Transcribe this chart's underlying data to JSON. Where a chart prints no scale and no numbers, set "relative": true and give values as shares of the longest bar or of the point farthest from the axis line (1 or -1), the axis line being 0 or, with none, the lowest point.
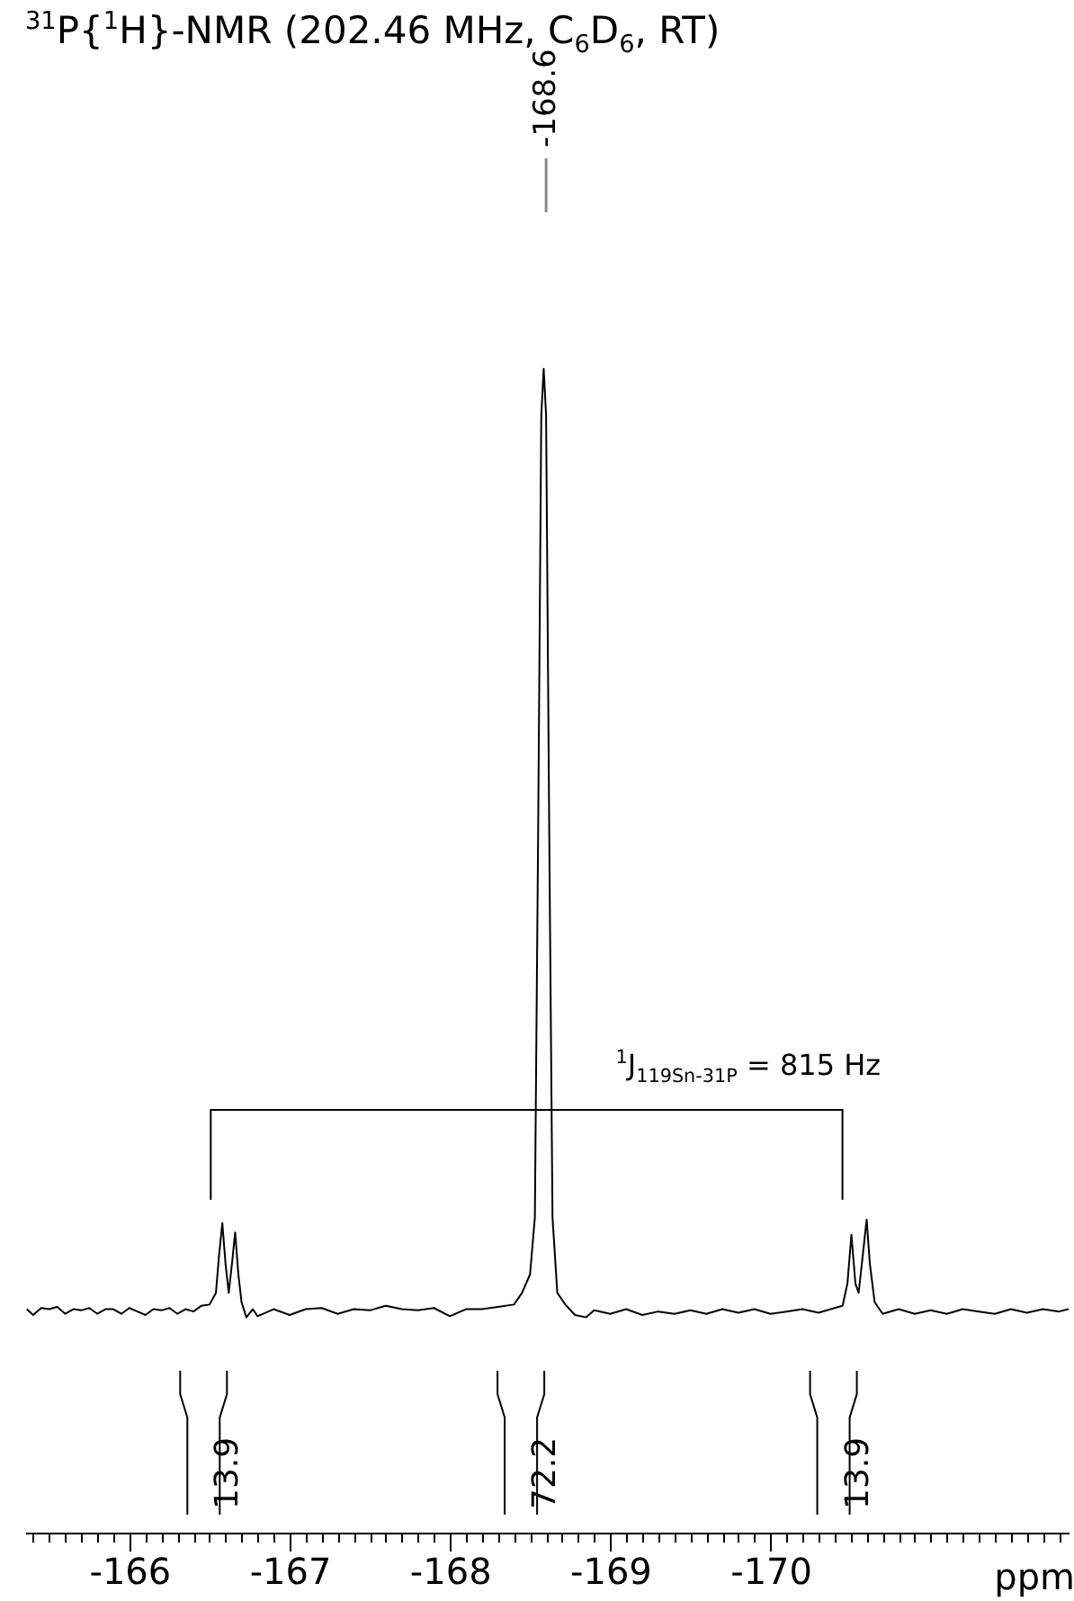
{
  "chart_data": {
    "type": "line",
    "title": "$^{31}$P{$^{1}$H}-NMR (202.46 MHz, C$_{6}$D$_{6}$, RT)",
    "xlabel": "ppm",
    "relative": true,
    "tick_labels": "x",
    "xlim": [
      -165.35,
      -171.86
    ],
    "xticks": [
      {
        "value": -165.4,
        "label": null
      },
      {
        "value": -165.5,
        "label": null
      },
      {
        "value": -165.6,
        "label": null
      },
      {
        "value": -165.7,
        "label": null
      },
      {
        "value": -165.8,
        "label": null
      },
      {
        "value": -165.9,
        "label": null
      },
      -166,
      {
        "value": -166.1,
        "label": null
      },
      {
        "value": -166.2,
        "label": null
      },
      {
        "value": -166.3,
        "label": null
      },
      {
        "value": -166.4,
        "label": null
      },
      {
        "value": -166.5,
        "label": null
      },
      {
        "value": -166.6,
        "label": null
      },
      {
        "value": -166.7,
        "label": null
      },
      {
        "value": -166.8,
        "label": null
      },
      {
        "value": -166.9,
        "label": null
      },
      -167,
      {
        "value": -167.1,
        "label": null
      },
      {
        "value": -167.2,
        "label": null
      },
      {
        "value": -167.3,
        "label": null
      },
      {
        "value": -167.4,
        "label": null
      },
      {
        "value": -167.5,
        "label": null
      },
      {
        "value": -167.6,
        "label": null
      },
      {
        "value": -167.7,
        "label": null
      },
      {
        "value": -167.8,
        "label": null
      },
      {
        "value": -167.9,
        "label": null
      },
      -168,
      {
        "value": -168.1,
        "label": null
      },
      {
        "value": -168.2,
        "label": null
      },
      {
        "value": -168.3,
        "label": null
      },
      {
        "value": -168.4,
        "label": null
      },
      {
        "value": -168.5,
        "label": null
      },
      {
        "value": -168.6,
        "label": null
      },
      {
        "value": -168.7,
        "label": null
      },
      {
        "value": -168.8,
        "label": null
      },
      {
        "value": -168.9,
        "label": null
      },
      -169,
      {
        "value": -169.1,
        "label": null
      },
      {
        "value": -169.2,
        "label": null
      },
      {
        "value": -169.3,
        "label": null
      },
      {
        "value": -169.4,
        "label": null
      },
      {
        "value": -169.5,
        "label": null
      },
      {
        "value": -169.6,
        "label": null
      },
      {
        "value": -169.7,
        "label": null
      },
      {
        "value": -169.8,
        "label": null
      },
      {
        "value": -169.9,
        "label": null
      },
      -170,
      {
        "value": -170.1,
        "label": null
      },
      {
        "value": -170.2,
        "label": null
      },
      {
        "value": -170.3,
        "label": null
      },
      {
        "value": -170.4,
        "label": null
      },
      {
        "value": -170.5,
        "label": null
      },
      {
        "value": -170.6,
        "label": null
      },
      {
        "value": -170.7,
        "label": null
      },
      {
        "value": -170.8,
        "label": null
      },
      {
        "value": -170.9,
        "label": null
      },
      {
        "value": -171,
        "label": null
      },
      {
        "value": -171.1,
        "label": null
      },
      {
        "value": -171.2,
        "label": null
      },
      {
        "value": -171.3,
        "label": null
      },
      {
        "value": -171.4,
        "label": null
      },
      {
        "value": -171.5,
        "label": null
      },
      {
        "value": -171.6,
        "label": null
      },
      {
        "value": -171.7,
        "label": null
      },
      {
        "value": -171.8,
        "label": null
      }
    ],
    "series": [
      {
        "color": "#000000",
        "x": [
          -165.36,
          -165.4,
          -165.45,
          -165.5,
          -165.55,
          -165.6,
          -165.65,
          -165.7,
          -165.75,
          -165.8,
          -165.85,
          -165.9,
          -165.95,
          -166.0,
          -166.05,
          -166.1,
          -166.15,
          -166.2,
          -166.25,
          -166.3,
          -166.35,
          -166.4,
          -166.45,
          -166.5,
          -166.54,
          -166.56,
          -166.58,
          -166.6,
          -166.62,
          -166.64,
          -166.66,
          -166.68,
          -166.7,
          -166.73,
          -166.77,
          -166.8,
          -166.9,
          -167.0,
          -167.1,
          -167.2,
          -167.3,
          -167.4,
          -167.5,
          -167.6,
          -167.7,
          -167.8,
          -167.9,
          -168.0,
          -168.1,
          -168.2,
          -168.3,
          -168.4,
          -168.45,
          -168.5,
          -168.53,
          -168.55,
          -168.57,
          -168.585,
          -168.6,
          -168.62,
          -168.64,
          -168.67,
          -168.72,
          -168.78,
          -168.85,
          -168.9,
          -169.0,
          -169.1,
          -169.2,
          -169.3,
          -169.4,
          -169.5,
          -169.6,
          -169.7,
          -169.8,
          -169.9,
          -170.0,
          -170.1,
          -170.2,
          -170.3,
          -170.4,
          -170.45,
          -170.48,
          -170.505,
          -170.53,
          -170.55,
          -170.57,
          -170.6,
          -170.62,
          -170.65,
          -170.7,
          -170.8,
          -170.9,
          -171.0,
          -171.1,
          -171.2,
          -171.3,
          -171.4,
          -171.5,
          -171.6,
          -171.7,
          -171.8,
          -171.86
        ],
        "values": [
          0.192,
          0.187,
          0.193,
          0.192,
          0.194,
          0.188,
          0.192,
          0.191,
          0.193,
          0.188,
          0.192,
          0.192,
          0.188,
          0.193,
          0.19,
          0.187,
          0.192,
          0.191,
          0.193,
          0.188,
          0.192,
          0.19,
          0.195,
          0.196,
          0.206,
          0.239,
          0.266,
          0.231,
          0.206,
          0.231,
          0.258,
          0.222,
          0.198,
          0.185,
          0.192,
          0.186,
          0.192,
          0.187,
          0.192,
          0.193,
          0.188,
          0.192,
          0.191,
          0.195,
          0.192,
          0.191,
          0.193,
          0.186,
          0.192,
          0.192,
          0.194,
          0.196,
          0.206,
          0.222,
          0.271,
          0.595,
          0.96,
          1,
          0.96,
          0.595,
          0.271,
          0.206,
          0.196,
          0.187,
          0.185,
          0.191,
          0.188,
          0.192,
          0.187,
          0.19,
          0.188,
          0.191,
          0.188,
          0.192,
          0.189,
          0.192,
          0.188,
          0.19,
          0.192,
          0.189,
          0.193,
          0.195,
          0.214,
          0.256,
          0.214,
          0.206,
          0.231,
          0.269,
          0.231,
          0.198,
          0.188,
          0.192,
          0.188,
          0.191,
          0.188,
          0.192,
          0.19,
          0.188,
          0.192,
          0.189,
          0.192,
          0.19,
          0.192
        ]
      }
    ],
    "annotations": [
      {
        "text": "-168.6",
        "x": -168.6
      },
      {
        "text": "13.9",
        "x": -166.62
      },
      {
        "text": "72.2",
        "x": -168.6
      },
      {
        "text": "13.9",
        "x": -170.55
      },
      "$^{1}$J$_{119Sn-31P}$ = 815 Hz"
    ]
  }
}
